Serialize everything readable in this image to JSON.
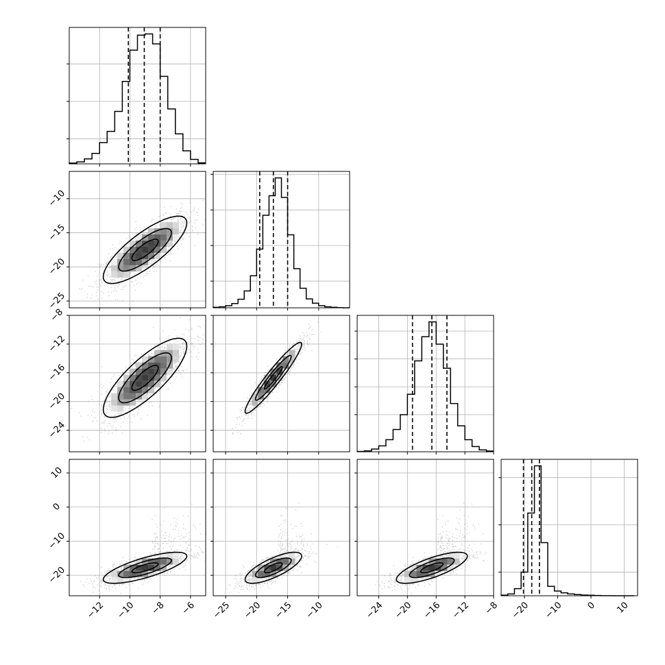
{
  "chart_data": {
    "type": "corner",
    "n_params": 4,
    "grid": true,
    "histograms": [
      {
        "param": 0,
        "xlim": [
          -14,
          -5
        ],
        "quantiles": [
          -10.1,
          -9.05,
          -8.0
        ],
        "bins": [
          -14,
          -13.5,
          -13,
          -12.5,
          -12,
          -11.5,
          -11,
          -10.5,
          -10,
          -9.5,
          -9,
          -8.5,
          -8,
          -7.5,
          -7,
          -6.5,
          -6,
          -5.5
        ],
        "counts": [
          0.3,
          0.8,
          2.0,
          4.2,
          8.5,
          13.0,
          21.0,
          33.0,
          45.5,
          51.5,
          52.0,
          48.0,
          35.0,
          22.0,
          12.0,
          5.2,
          1.8,
          0.4
        ],
        "yticks": [
          10,
          25,
          40
        ]
      },
      {
        "param": 1,
        "xlim": [
          -27,
          -5
        ],
        "quantiles": [
          -19.5,
          -17.3,
          -15.0
        ],
        "bins": [
          -27,
          -26,
          -25,
          -24,
          -23,
          -22,
          -21,
          -20,
          -19,
          -18,
          -17,
          -16,
          -15,
          -14,
          -13,
          -12,
          -11,
          -10,
          -9,
          -8,
          -7,
          -6
        ],
        "counts": [
          0.3,
          0.6,
          1.2,
          2.4,
          4.8,
          9.5,
          18.0,
          33.0,
          52.0,
          63.0,
          73.0,
          62.0,
          41.0,
          22.0,
          11.0,
          5.0,
          2.6,
          1.2,
          0.6,
          0.3,
          0.1,
          0.0
        ],
        "yticks": [
          15,
          35,
          55,
          75
        ]
      },
      {
        "param": 2,
        "xlim": [
          -27,
          -8
        ],
        "quantiles": [
          -19.3,
          -16.6,
          -14.5
        ],
        "bins": [
          -27,
          -26,
          -25,
          -24,
          -23,
          -22,
          -21,
          -20,
          -19,
          -18,
          -17,
          -16,
          -15,
          -14,
          -13,
          -12,
          -11,
          -10,
          -9
        ],
        "counts": [
          0.2,
          0.5,
          1.5,
          3.2,
          6.5,
          12.0,
          20.0,
          31.0,
          49.0,
          62.0,
          70.0,
          58.0,
          45.0,
          26.0,
          14.0,
          6.5,
          2.8,
          1.0,
          0.4
        ],
        "yticks": [
          20,
          35,
          50,
          65
        ]
      },
      {
        "param": 3,
        "xlim": [
          -27,
          14
        ],
        "quantiles": [
          -20.3,
          -17.8,
          -15.5
        ],
        "bins": [
          -27,
          -25,
          -23,
          -21,
          -19,
          -17,
          -15,
          -13,
          -11,
          -9,
          -7,
          -5,
          -3,
          -1,
          1,
          3,
          5,
          7,
          9,
          11,
          13
        ],
        "counts": [
          0.5,
          1.5,
          6.0,
          20.0,
          70.0,
          110.0,
          45.0,
          8.0,
          4.0,
          2.5,
          1.5,
          1.0,
          0.6,
          0.4,
          0.2,
          0.1,
          0.05,
          0.0,
          0.0,
          0.0
        ],
        "yticks": [
          20,
          60,
          100
        ]
      }
    ],
    "pairs": [
      {
        "row": 1,
        "col": 0,
        "xlim": [
          -14,
          -5
        ],
        "ylim": [
          -26,
          -6
        ],
        "mean": [
          -9.0,
          -17.5
        ],
        "std": [
          1.45,
          2.6
        ],
        "rho": 0.8
      },
      {
        "row": 2,
        "col": 0,
        "xlim": [
          -14,
          -5
        ],
        "ylim": [
          -27,
          -8
        ],
        "mean": [
          -9.0,
          -16.7
        ],
        "std": [
          1.45,
          2.9
        ],
        "rho": 0.8
      },
      {
        "row": 2,
        "col": 1,
        "xlim": [
          -27,
          -5
        ],
        "ylim": [
          -27,
          -8
        ],
        "mean": [
          -17.3,
          -16.7
        ],
        "std": [
          2.4,
          2.6
        ],
        "rho": 0.95
      },
      {
        "row": 3,
        "col": 0,
        "xlim": [
          -14,
          -5
        ],
        "ylim": [
          -26,
          14
        ],
        "mean": [
          -9.0,
          -17.8
        ],
        "std": [
          1.45,
          2.4
        ],
        "rho": 0.75
      },
      {
        "row": 3,
        "col": 1,
        "xlim": [
          -27,
          -5
        ],
        "ylim": [
          -26,
          14
        ],
        "mean": [
          -17.3,
          -17.8
        ],
        "std": [
          2.4,
          2.4
        ],
        "rho": 0.75
      },
      {
        "row": 3,
        "col": 2,
        "xlim": [
          -27,
          -8
        ],
        "ylim": [
          -26,
          14
        ],
        "mean": [
          -16.6,
          -17.8
        ],
        "std": [
          2.6,
          2.4
        ],
        "rho": 0.75
      }
    ],
    "x_tick_labels": [
      [
        "−12",
        "−10",
        "−8",
        "−6"
      ],
      [
        "−25",
        "−20",
        "−15",
        "−10"
      ],
      [
        "−24",
        "−20",
        "−16",
        "−12",
        "−8"
      ],
      [
        "−20",
        "−10",
        "0",
        "10"
      ]
    ],
    "x_tick_values": [
      [
        -12,
        -10,
        -8,
        -6
      ],
      [
        -25,
        -20,
        -15,
        -10
      ],
      [
        -24,
        -20,
        -16,
        -12,
        -8
      ],
      [
        -20,
        -10,
        0,
        10
      ]
    ],
    "y_tick_labels": [
      [],
      [
        "−10",
        "−15",
        "−20",
        "−25"
      ],
      [
        "−8",
        "−12",
        "−16",
        "−20",
        "−24"
      ],
      [
        "10",
        "0",
        "−10",
        "−20"
      ]
    ],
    "y_tick_values": [
      [],
      [
        -10,
        -15,
        -20,
        -25
      ],
      [
        -8,
        -12,
        -16,
        -20,
        -24
      ],
      [
        10,
        0,
        -10,
        -20
      ]
    ],
    "colors": {
      "line": "#000000",
      "grid": "#b0b0b0",
      "scatter": "#7f7f7f"
    }
  }
}
